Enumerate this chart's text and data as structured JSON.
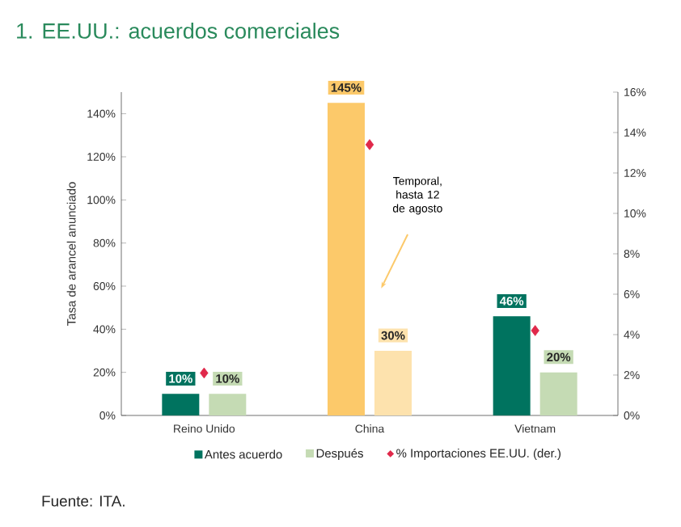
{
  "chart_data": {
    "type": "bar",
    "title": "1. EE.UU.: acuerdos comerciales",
    "ylabel": "Tasa de arancel anunciado",
    "categories": [
      "Reino Unido",
      "China",
      "Vietnam"
    ],
    "series": [
      {
        "name": "Antes acuerdo",
        "colors": [
          "#00735f",
          "#fcc96a",
          "#00735f"
        ],
        "values": [
          10,
          145,
          46
        ],
        "value_labels": [
          "10%",
          "145%",
          "46%"
        ]
      },
      {
        "name": "Después",
        "colors": [
          "#c5dbb4",
          "#fde2ad",
          "#c5dbb4"
        ],
        "values": [
          10,
          30,
          20
        ],
        "value_labels": [
          "10%",
          "30%",
          "20%"
        ]
      },
      {
        "name": "% Importaciones EE.UU. (der.)",
        "type": "scatter",
        "axis": "y2",
        "marker": "diamond",
        "color": "#e0284a",
        "values": [
          2.1,
          13.4,
          4.2
        ]
      }
    ],
    "ylim": [
      0,
      150
    ],
    "yticks": [
      {
        "value": 0,
        "label": "0%"
      },
      {
        "value": 20,
        "label": "20%"
      },
      {
        "value": 40,
        "label": "40%"
      },
      {
        "value": 60,
        "label": "60%"
      },
      {
        "value": 80,
        "label": "80%"
      },
      {
        "value": 100,
        "label": "100%"
      },
      {
        "value": 120,
        "label": "120%"
      },
      {
        "value": 140,
        "label": "140%"
      }
    ],
    "y2lim": [
      0,
      16
    ],
    "y2ticks": [
      {
        "value": 0,
        "label": "0%"
      },
      {
        "value": 2,
        "label": "2%"
      },
      {
        "value": 4,
        "label": "4%"
      },
      {
        "value": 6,
        "label": "6%"
      },
      {
        "value": 8,
        "label": "8%"
      },
      {
        "value": 10,
        "label": "10%"
      },
      {
        "value": 12,
        "label": "12%"
      },
      {
        "value": 14,
        "label": "14%"
      },
      {
        "value": 16,
        "label": "16%"
      }
    ],
    "legend": "bottom",
    "annotations": [
      "Temporal, hasta 12 de agosto",
      "Fuente: ITA."
    ]
  }
}
